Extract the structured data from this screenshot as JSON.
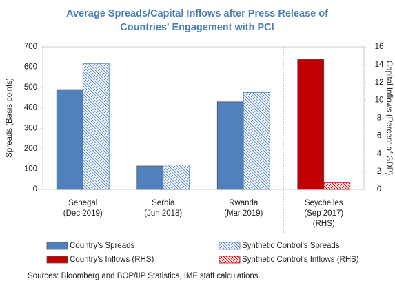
{
  "chart_data": {
    "type": "bar",
    "title": [
      "Average Spreads/Capital Inflows after Press Release of",
      "Countries' Engagement with PCI"
    ],
    "categories": [
      [
        "Senegal",
        "(Dec 2019)"
      ],
      [
        "Serbia",
        "(Jun 2018)"
      ],
      [
        "Rwanda",
        "(Mar 2019)"
      ],
      [
        "Seychelles",
        "(Sep 2017)",
        "(RHS)"
      ]
    ],
    "series": [
      {
        "name": "Country's Spreads",
        "color": "#4f81bd",
        "hatch": false,
        "values": [
          490,
          115,
          430,
          null
        ]
      },
      {
        "name": "Synthetic Control's Spreads",
        "color": "#4f81bd",
        "hatch": true,
        "values": [
          618,
          120,
          475,
          null
        ]
      },
      {
        "name": "Country's Inflows (RHS)",
        "color": "#c00000",
        "hatch": false,
        "axis": "y2",
        "values": [
          null,
          null,
          null,
          14.6
        ]
      },
      {
        "name": "Synthetic Control's Inflows (RHS)",
        "color": "#c00000",
        "hatch": true,
        "axis": "y2",
        "values": [
          null,
          null,
          null,
          0.8
        ]
      }
    ],
    "ylabel": "Spreads (Basis points)",
    "y2label": "Capital Inflows (Percent of GDP)",
    "ylim": [
      0,
      700
    ],
    "yticks": [
      0,
      100,
      200,
      300,
      400,
      500,
      600,
      700
    ],
    "y2lim": [
      0,
      16
    ],
    "y2ticks": [
      0,
      2,
      4,
      6,
      8,
      10,
      12,
      14,
      16
    ],
    "source": "Sources: Bloomberg and BOP/IIP Statistics, IMF staff calculations."
  }
}
